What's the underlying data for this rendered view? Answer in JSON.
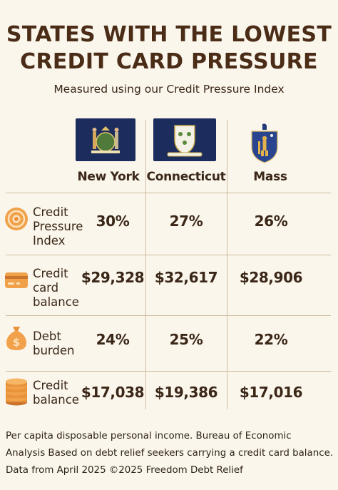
{
  "header": {
    "title_line1": "STATES WITH THE LOWEST",
    "title_line2": "CREDIT CARD PRESSURE",
    "subtitle": "Measured using our Credit Pressure Index"
  },
  "states": [
    {
      "name": "New York",
      "flag_icon": "new-york-flag-icon"
    },
    {
      "name": "Connecticut",
      "flag_icon": "connecticut-flag-icon"
    },
    {
      "name": "Mass",
      "flag_icon": "massachusetts-seal-icon"
    }
  ],
  "rows": [
    {
      "label_lines": [
        "Credit",
        "Pressure",
        "Index"
      ],
      "icon": "target-coin-icon",
      "values": [
        "30%",
        "27%",
        "26%"
      ]
    },
    {
      "label_lines": [
        "Credit",
        "card",
        "balance"
      ],
      "icon": "credit-card-icon",
      "values": [
        "$29,328",
        "$32,617",
        "$28,906"
      ]
    },
    {
      "label_lines": [
        "Debt",
        "burden"
      ],
      "icon": "money-bag-icon",
      "values": [
        "24%",
        "25%",
        "22%"
      ]
    },
    {
      "label_lines": [
        "Credit",
        "balance"
      ],
      "icon": "coin-stack-icon",
      "values": [
        "$17,038",
        "$19,386",
        "$17,016"
      ]
    }
  ],
  "footer": {
    "line1": "Per capita disposable personal income. Bureau of Economic",
    "line2": "Analysis Based on debt relief seekers carrying a credit card balance.",
    "line3": "Data from April 2025 ©2025 Freedom Debt Relief"
  },
  "colors": {
    "background": "#fbf6ec",
    "title": "#4a2c17",
    "flag_blue": "#1c2c5c",
    "accent_orange": "#e8923a",
    "rule": "#cdbb9c"
  }
}
